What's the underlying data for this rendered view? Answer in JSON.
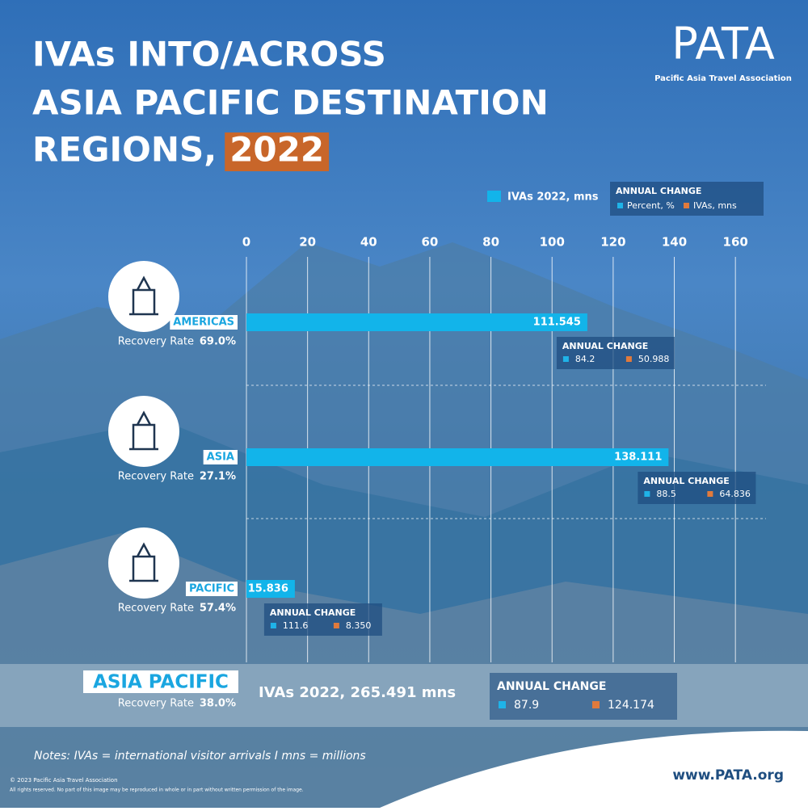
{
  "header": {
    "title_lines": [
      "IVAs INTO/ACROSS",
      "ASIA PACIFIC DESTINATION",
      "REGIONS,"
    ],
    "title_year": "2022",
    "logo": "PATA",
    "logo_sub": "Pacific Asia Travel Association"
  },
  "chart_data": {
    "type": "bar",
    "orientation": "horizontal",
    "categories": [
      "AMERICAS",
      "ASIA",
      "PACIFIC"
    ],
    "series": [
      {
        "name": "IVAs 2022, mns",
        "color": "#12b4ea",
        "values": [
          111.545,
          138.111,
          15.836
        ]
      }
    ],
    "xlim": [
      0,
      170
    ],
    "xticks": [
      0,
      20,
      40,
      60,
      80,
      100,
      120,
      140,
      160
    ],
    "grid": true,
    "annual_change": {
      "title": "ANNUAL CHANGE",
      "series": [
        {
          "name": "Percent, %",
          "color": "#1fb3e8",
          "values": [
            84.2,
            88.5,
            111.6
          ]
        },
        {
          "name": "IVAs, mns",
          "color": "#e07a3c",
          "values": [
            50.988,
            64.836,
            8.35
          ],
          "value_labels": [
            "50.988",
            "64.836",
            "8.350"
          ]
        }
      ]
    },
    "recovery_rate": {
      "label": "Recovery Rate",
      "value_labels": [
        "69.0%",
        "27.1%",
        "57.4%"
      ]
    }
  },
  "summary": {
    "region": "ASIA PACIFIC",
    "ivas_text": "IVAs 2022, 265.491 mns",
    "recovery_label": "Recovery Rate",
    "recovery_rate": "38.0%",
    "annual_change_title": "ANNUAL CHANGE",
    "percent": "87.9",
    "ivas": "124.174"
  },
  "footer": {
    "notes": "Notes: IVAs = international visitor arrivals I mns = millions",
    "copyright": "© 2023 Pacific Asia Travel Association",
    "rights": "All rights reserved. No part of this image may be reproduced in whole or in part without written permission of the image.",
    "url": "www.PATA.org"
  }
}
